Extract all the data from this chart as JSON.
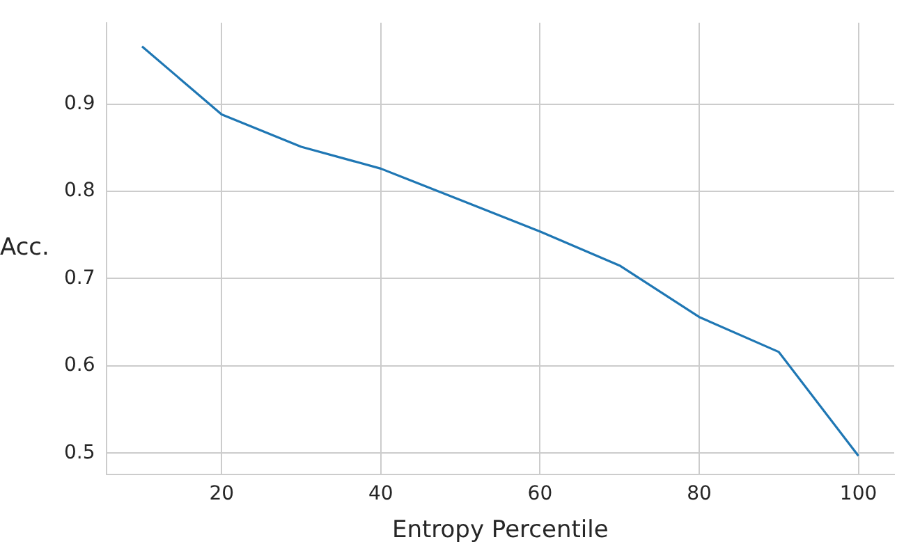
{
  "chart_data": {
    "type": "line",
    "xlabel": "Entropy Percentile",
    "ylabel": "Acc.",
    "x": [
      10,
      20,
      30,
      40,
      50,
      60,
      70,
      80,
      90,
      100
    ],
    "series": [
      {
        "color": "#1f77b4",
        "values": [
          0.966,
          0.888,
          0.851,
          0.826,
          0.79,
          0.754,
          0.715,
          0.656,
          0.616,
          0.497
        ]
      }
    ],
    "xlim": [
      5.5,
      104.5
    ],
    "ylim": [
      0.476,
      0.993
    ],
    "xticks": [
      20,
      40,
      60,
      80,
      100
    ],
    "yticks": [
      0.5,
      0.6,
      0.7,
      0.8,
      0.9
    ],
    "grid": true,
    "legend": false,
    "marker": "none",
    "line_style": "solid"
  }
}
